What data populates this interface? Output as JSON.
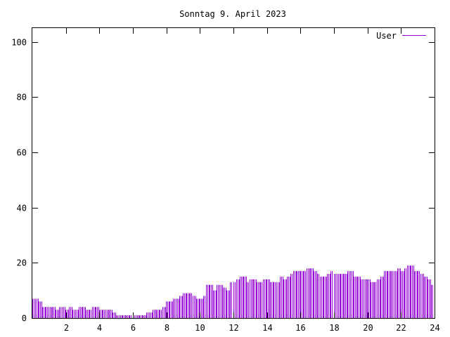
{
  "chart_data": {
    "type": "bar",
    "title": "Sonntag 9. April 2023",
    "xlabel": "",
    "ylabel": "",
    "xlim": [
      0,
      24
    ],
    "ylim": [
      0,
      105
    ],
    "xticks": [
      2,
      4,
      6,
      8,
      10,
      12,
      14,
      16,
      18,
      20,
      22,
      24
    ],
    "yticks": [
      0,
      20,
      40,
      60,
      80,
      100
    ],
    "legend_position": "top-right",
    "grid": false,
    "series": [
      {
        "name": "User",
        "color": "#9400d3",
        "points": [
          [
            0.0,
            7
          ],
          [
            0.2,
            7
          ],
          [
            0.4,
            6
          ],
          [
            0.6,
            4
          ],
          [
            0.8,
            4
          ],
          [
            1.0,
            4
          ],
          [
            1.2,
            4
          ],
          [
            1.4,
            3
          ],
          [
            1.6,
            4
          ],
          [
            1.8,
            4
          ],
          [
            2.0,
            3
          ],
          [
            2.2,
            4
          ],
          [
            2.4,
            3
          ],
          [
            2.6,
            3
          ],
          [
            2.8,
            4
          ],
          [
            3.0,
            4
          ],
          [
            3.2,
            3
          ],
          [
            3.4,
            3
          ],
          [
            3.6,
            4
          ],
          [
            3.8,
            4
          ],
          [
            4.0,
            3
          ],
          [
            4.2,
            3
          ],
          [
            4.4,
            3
          ],
          [
            4.6,
            3
          ],
          [
            4.8,
            2
          ],
          [
            5.0,
            1
          ],
          [
            5.2,
            1
          ],
          [
            5.4,
            1
          ],
          [
            5.6,
            1
          ],
          [
            5.8,
            1
          ],
          [
            6.0,
            1
          ],
          [
            6.2,
            1
          ],
          [
            6.4,
            1
          ],
          [
            6.6,
            1
          ],
          [
            6.8,
            2
          ],
          [
            7.0,
            2
          ],
          [
            7.2,
            3
          ],
          [
            7.4,
            3
          ],
          [
            7.6,
            3
          ],
          [
            7.8,
            4
          ],
          [
            8.0,
            6
          ],
          [
            8.2,
            6
          ],
          [
            8.4,
            7
          ],
          [
            8.6,
            7
          ],
          [
            8.8,
            8
          ],
          [
            9.0,
            9
          ],
          [
            9.2,
            9
          ],
          [
            9.4,
            9
          ],
          [
            9.6,
            8
          ],
          [
            9.8,
            7
          ],
          [
            10.0,
            7
          ],
          [
            10.2,
            8
          ],
          [
            10.4,
            12
          ],
          [
            10.6,
            12
          ],
          [
            10.8,
            10
          ],
          [
            11.0,
            12
          ],
          [
            11.2,
            12
          ],
          [
            11.4,
            11
          ],
          [
            11.6,
            10
          ],
          [
            11.8,
            13
          ],
          [
            12.0,
            13
          ],
          [
            12.2,
            14
          ],
          [
            12.4,
            15
          ],
          [
            12.6,
            15
          ],
          [
            12.8,
            13
          ],
          [
            13.0,
            14
          ],
          [
            13.2,
            14
          ],
          [
            13.4,
            13
          ],
          [
            13.6,
            13
          ],
          [
            13.8,
            14
          ],
          [
            14.0,
            14
          ],
          [
            14.2,
            13
          ],
          [
            14.4,
            13
          ],
          [
            14.6,
            13
          ],
          [
            14.8,
            15
          ],
          [
            15.0,
            14
          ],
          [
            15.2,
            15
          ],
          [
            15.4,
            16
          ],
          [
            15.6,
            17
          ],
          [
            15.8,
            17
          ],
          [
            16.0,
            17
          ],
          [
            16.2,
            17
          ],
          [
            16.4,
            18
          ],
          [
            16.6,
            18
          ],
          [
            16.8,
            17
          ],
          [
            17.0,
            16
          ],
          [
            17.2,
            15
          ],
          [
            17.4,
            15
          ],
          [
            17.6,
            16
          ],
          [
            17.8,
            17
          ],
          [
            18.0,
            16
          ],
          [
            18.2,
            16
          ],
          [
            18.4,
            16
          ],
          [
            18.6,
            16
          ],
          [
            18.8,
            17
          ],
          [
            19.0,
            17
          ],
          [
            19.2,
            15
          ],
          [
            19.4,
            15
          ],
          [
            19.6,
            14
          ],
          [
            19.8,
            14
          ],
          [
            20.0,
            14
          ],
          [
            20.2,
            13
          ],
          [
            20.4,
            13
          ],
          [
            20.6,
            14
          ],
          [
            20.8,
            15
          ],
          [
            21.0,
            17
          ],
          [
            21.2,
            17
          ],
          [
            21.4,
            17
          ],
          [
            21.6,
            17
          ],
          [
            21.8,
            18
          ],
          [
            22.0,
            17
          ],
          [
            22.2,
            18
          ],
          [
            22.4,
            19
          ],
          [
            22.6,
            19
          ],
          [
            22.8,
            17
          ],
          [
            23.0,
            17
          ],
          [
            23.2,
            16
          ],
          [
            23.4,
            15
          ],
          [
            23.6,
            14
          ],
          [
            23.8,
            12
          ]
        ]
      }
    ]
  }
}
